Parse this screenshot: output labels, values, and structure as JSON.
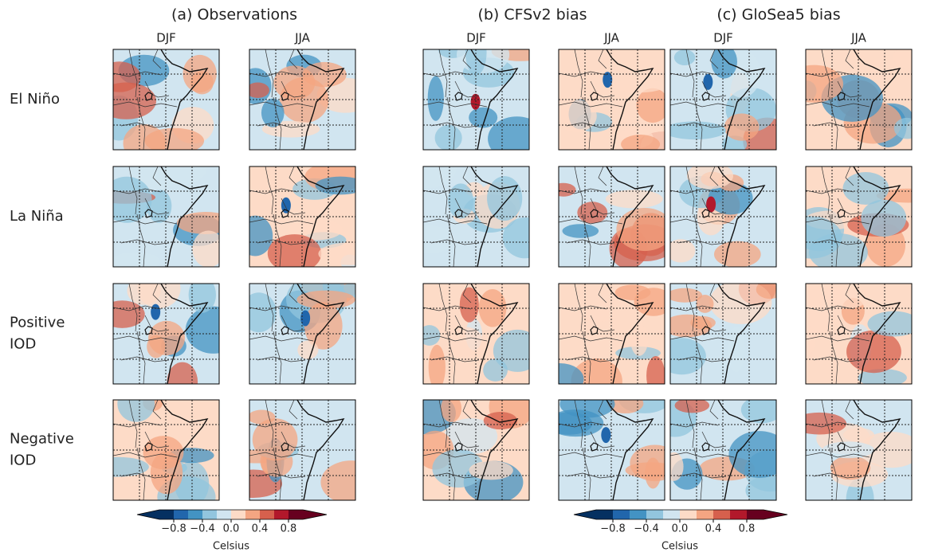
{
  "columns": [
    {
      "title": "(a) Observations",
      "seasons": [
        "DJF",
        "JJA"
      ]
    },
    {
      "title": "(b) CFSv2 bias",
      "seasons": [
        "DJF",
        "JJA"
      ]
    },
    {
      "title": "(c) GloSea5 bias",
      "seasons": [
        "DJF",
        "JJA"
      ]
    }
  ],
  "rows": [
    {
      "label": [
        "El Niño"
      ]
    },
    {
      "label": [
        "La Niña"
      ]
    },
    {
      "label": [
        "Positive",
        "IOD"
      ]
    },
    {
      "label": [
        "Negative",
        "IOD"
      ]
    }
  ],
  "colorbars": [
    {
      "ticks": [
        "−0.8",
        "−0.4",
        "0.0",
        "0.4",
        "0.8"
      ],
      "label": "Celsius"
    },
    {
      "ticks": [
        "−0.8",
        "−0.4",
        "0.0",
        "0.4",
        "0.8"
      ],
      "label": "Celsius"
    }
  ]
}
